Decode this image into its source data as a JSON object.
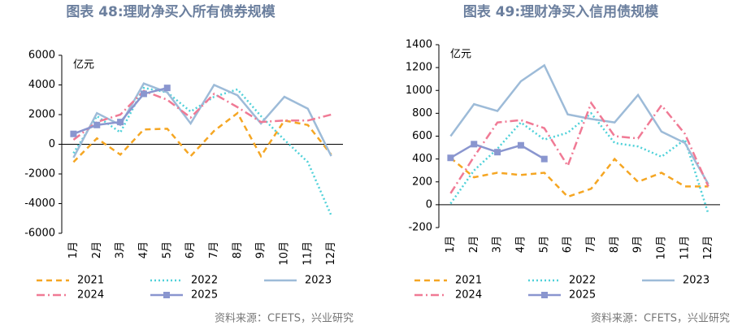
{
  "chart_data": [
    {
      "type": "line",
      "title": "图表 48:理财净买入所有债券规模",
      "unit": "亿元",
      "source": "资料来源：CFETS，兴业研究",
      "categories": [
        "1月",
        "2月",
        "3月",
        "4月",
        "5月",
        "6月",
        "7月",
        "8月",
        "9月",
        "10月",
        "11月",
        "12月"
      ],
      "ylim": [
        -6000,
        6000
      ],
      "yticks": [
        -6000,
        -4000,
        -2000,
        0,
        2000,
        4000,
        6000
      ],
      "series": [
        {
          "name": "2021",
          "color": "#f5a623",
          "dash": "dashed",
          "values": [
            -1200,
            400,
            -700,
            1000,
            1050,
            -800,
            900,
            2100,
            -800,
            1600,
            1300,
            -700
          ]
        },
        {
          "name": "2022",
          "color": "#4fd1d9",
          "dash": "dotted",
          "values": [
            -600,
            1900,
            800,
            3800,
            3500,
            2200,
            3200,
            3700,
            1900,
            300,
            -1200,
            -4800
          ]
        },
        {
          "name": "2023",
          "color": "#9dbbd8",
          "dash": "solid",
          "values": [
            -900,
            2100,
            1300,
            4100,
            3500,
            1400,
            4000,
            3300,
            1400,
            3200,
            2400,
            -800
          ]
        },
        {
          "name": "2024",
          "color": "#f07a95",
          "dash": "dashdot",
          "values": [
            300,
            1500,
            2000,
            3600,
            3000,
            1800,
            3400,
            2500,
            1500,
            1600,
            1600,
            2000
          ]
        },
        {
          "name": "2025",
          "color": "#8a96cf",
          "dash": "solid",
          "marker": "square",
          "values": [
            700,
            1300,
            1500,
            3400,
            3800,
            null,
            null,
            null,
            null,
            null,
            null,
            null
          ]
        }
      ]
    },
    {
      "type": "line",
      "title": "图表 49:理财净买入信用债规模",
      "unit": "亿元",
      "source": "资料来源：CFETS，兴业研究",
      "categories": [
        "1月",
        "2月",
        "3月",
        "4月",
        "5月",
        "6月",
        "7月",
        "8月",
        "9月",
        "10月",
        "11月",
        "12月"
      ],
      "ylim": [
        -200,
        1400
      ],
      "yticks": [
        -200,
        0,
        200,
        400,
        600,
        800,
        1000,
        1200,
        1400
      ],
      "series": [
        {
          "name": "2021",
          "color": "#f5a623",
          "dash": "dashed",
          "values": [
            410,
            240,
            280,
            260,
            280,
            70,
            140,
            400,
            200,
            280,
            160,
            160
          ]
        },
        {
          "name": "2022",
          "color": "#4fd1d9",
          "dash": "dotted",
          "values": [
            10,
            300,
            490,
            720,
            570,
            630,
            800,
            540,
            510,
            420,
            570,
            -80
          ]
        },
        {
          "name": "2023",
          "color": "#9dbbd8",
          "dash": "solid",
          "values": [
            600,
            880,
            820,
            1080,
            1220,
            790,
            750,
            720,
            960,
            640,
            540,
            180
          ]
        },
        {
          "name": "2024",
          "color": "#f07a95",
          "dash": "dashdot",
          "values": [
            100,
            420,
            720,
            740,
            670,
            340,
            890,
            600,
            580,
            870,
            620,
            160
          ]
        },
        {
          "name": "2025",
          "color": "#8a96cf",
          "dash": "solid",
          "marker": "square",
          "values": [
            410,
            530,
            460,
            520,
            400,
            null,
            null,
            null,
            null,
            null,
            null,
            null
          ]
        }
      ]
    }
  ]
}
